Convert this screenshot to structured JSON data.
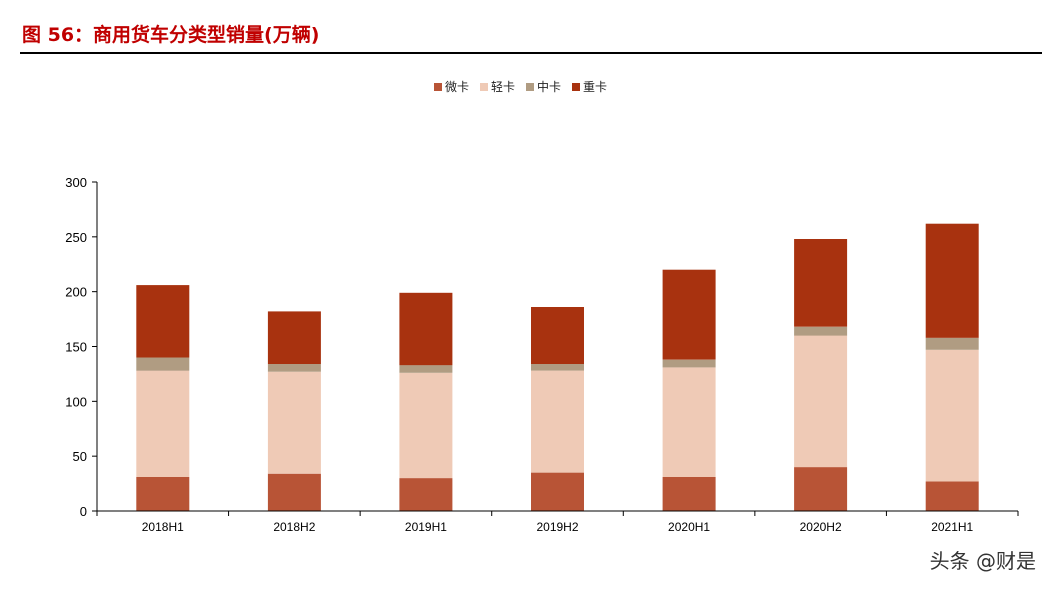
{
  "figure": {
    "title": "图 56：商用货车分类型销量(万辆)"
  },
  "watermark": "头条 @财是",
  "colors": {
    "title": "#c00000",
    "micro": "#b85436",
    "light": "#efcab6",
    "medium": "#b09c82",
    "heavy": "#a8320f"
  },
  "chart_data": {
    "type": "bar",
    "stacked": true,
    "title": "",
    "xlabel": "",
    "ylabel": "",
    "ylim": [
      0,
      300
    ],
    "yticks": [
      0,
      50,
      100,
      150,
      200,
      250,
      300
    ],
    "categories": [
      "2018H1",
      "2018H2",
      "2019H1",
      "2019H2",
      "2020H1",
      "2020H2",
      "2021H1"
    ],
    "legend_position": "top-center",
    "grid": false,
    "series": [
      {
        "name": "微卡",
        "color": "#b85436",
        "values": [
          31,
          34,
          30,
          35,
          31,
          40,
          27
        ]
      },
      {
        "name": "轻卡",
        "color": "#efcab6",
        "values": [
          97,
          93,
          96,
          93,
          100,
          120,
          120
        ]
      },
      {
        "name": "中卡",
        "color": "#b09c82",
        "values": [
          12,
          7,
          7,
          6,
          7,
          8,
          11
        ]
      },
      {
        "name": "重卡",
        "color": "#a8320f",
        "values": [
          66,
          48,
          66,
          52,
          82,
          80,
          104
        ]
      }
    ]
  }
}
